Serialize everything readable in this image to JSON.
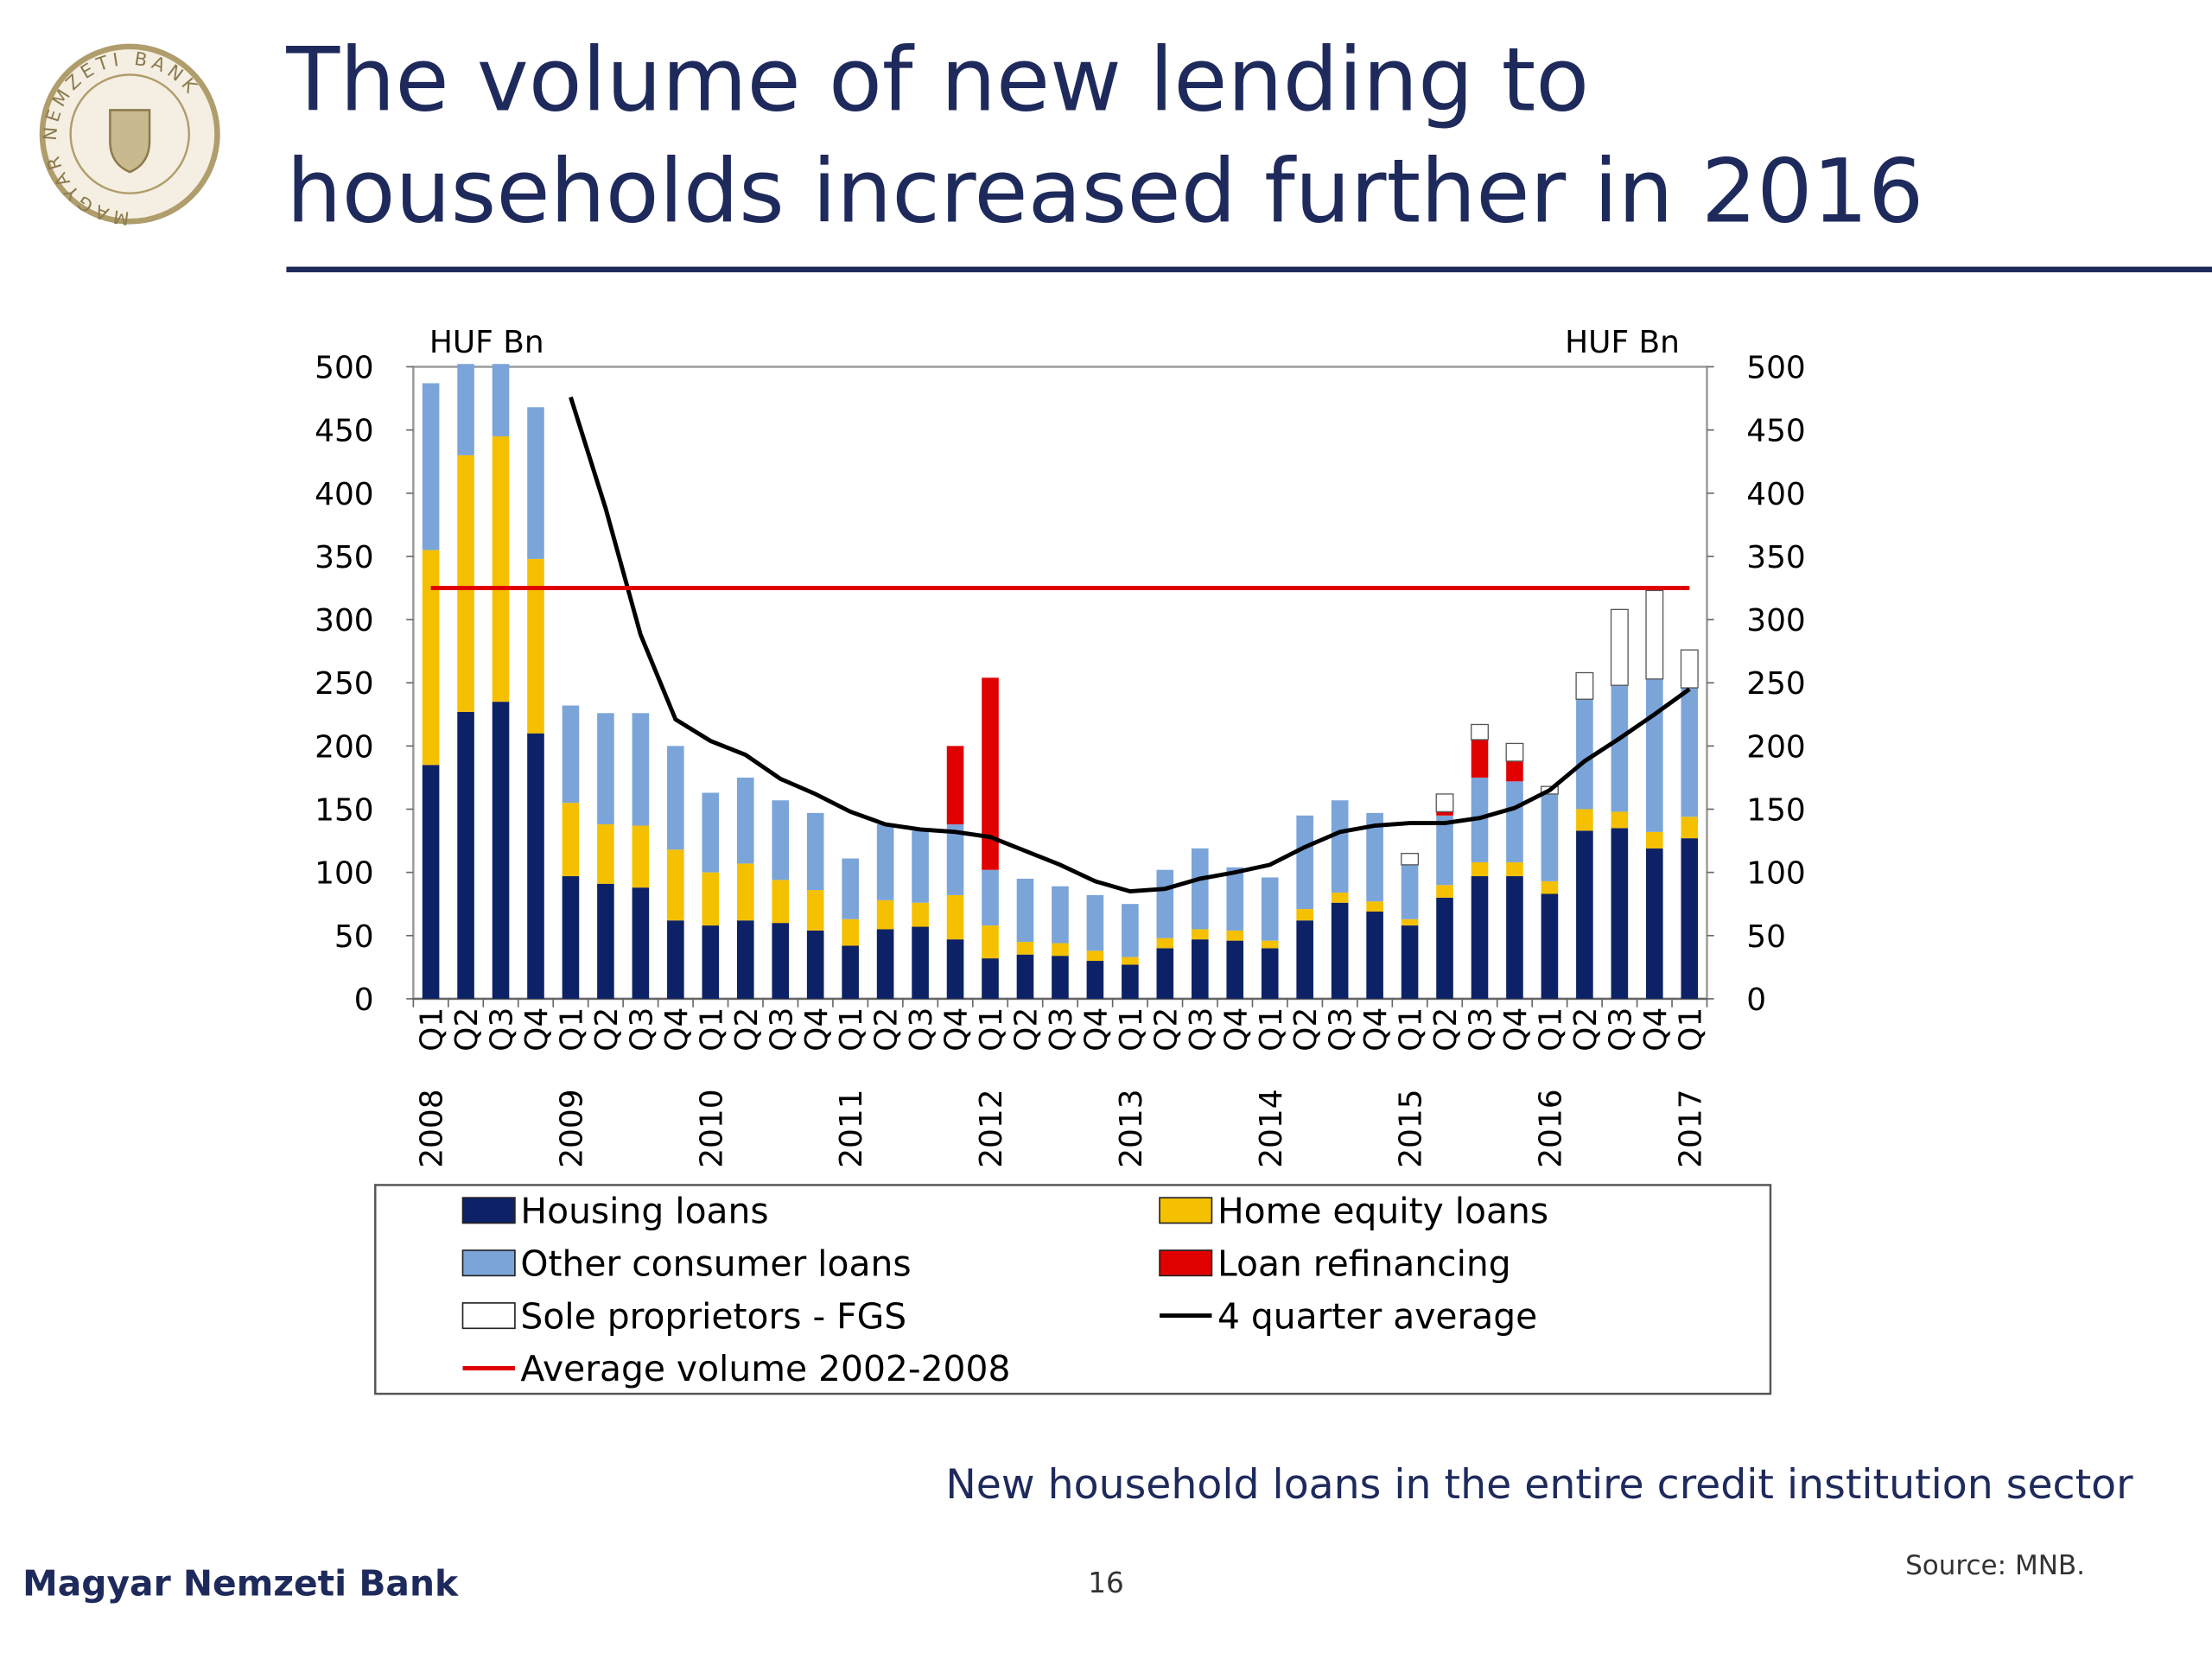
{
  "header": {
    "title": [
      "The volume of new lending to",
      "households increased further in 2016"
    ],
    "logo_text": "MAGYAR NEMZETI BANK"
  },
  "chart_data": {
    "type": "bar",
    "stacked": true,
    "y_unit_label": "HUF Bn",
    "y2_unit_label": "HUF Bn",
    "categories": [
      "Q1",
      "Q2",
      "Q3",
      "Q4",
      "Q1",
      "Q2",
      "Q3",
      "Q4",
      "Q1",
      "Q2",
      "Q3",
      "Q4",
      "Q1",
      "Q2",
      "Q3",
      "Q4",
      "Q1",
      "Q2",
      "Q3",
      "Q4",
      "Q1",
      "Q2",
      "Q3",
      "Q4",
      "Q1",
      "Q2",
      "Q3",
      "Q4",
      "Q1",
      "Q2",
      "Q3",
      "Q4",
      "Q1",
      "Q2",
      "Q3",
      "Q4",
      "Q1"
    ],
    "category_groups": [
      "2008",
      "2009",
      "2010",
      "2011",
      "2012",
      "2013",
      "2014",
      "2015",
      "2016",
      "2017"
    ],
    "series": [
      {
        "name": "Housing loans",
        "type": "bar",
        "color": "#0d2266",
        "values": [
          185,
          227,
          235,
          210,
          97,
          91,
          88,
          62,
          58,
          62,
          60,
          54,
          42,
          55,
          57,
          47,
          32,
          35,
          34,
          30,
          27,
          40,
          47,
          46,
          40,
          62,
          76,
          69,
          58,
          80,
          97,
          97,
          83,
          133,
          135,
          119,
          127
        ]
      },
      {
        "name": "Home equity loans",
        "type": "bar",
        "color": "#f5c000",
        "values": [
          170,
          203,
          210,
          138,
          58,
          47,
          49,
          56,
          42,
          45,
          34,
          32,
          21,
          23,
          19,
          35,
          26,
          10,
          10,
          8,
          6,
          8,
          8,
          8,
          6,
          9,
          8,
          8,
          5,
          10,
          11,
          11,
          10,
          17,
          13,
          13,
          17
        ]
      },
      {
        "name": "Other consumer loans",
        "type": "bar",
        "color": "#7ba4d9",
        "values": [
          132,
          95,
          80,
          120,
          77,
          88,
          89,
          82,
          63,
          68,
          63,
          61,
          48,
          60,
          57,
          56,
          44,
          50,
          45,
          44,
          42,
          54,
          64,
          50,
          50,
          74,
          73,
          70,
          43,
          55,
          67,
          64,
          69,
          87,
          100,
          121,
          102
        ]
      },
      {
        "name": "Loan refinancing",
        "type": "bar",
        "color": "#e00000",
        "values": [
          0,
          0,
          0,
          0,
          0,
          0,
          0,
          0,
          0,
          0,
          0,
          0,
          0,
          0,
          0,
          62,
          152,
          0,
          0,
          0,
          0,
          0,
          0,
          0,
          0,
          0,
          0,
          0,
          0,
          3,
          30,
          16,
          0,
          0,
          0,
          0,
          0
        ]
      },
      {
        "name": "Sole proprietors - FGS",
        "type": "bar",
        "color": "#ffffff",
        "values": [
          0,
          0,
          0,
          0,
          0,
          0,
          0,
          0,
          0,
          0,
          0,
          0,
          0,
          0,
          0,
          0,
          0,
          0,
          0,
          0,
          0,
          0,
          0,
          0,
          0,
          0,
          0,
          0,
          9,
          14,
          12,
          14,
          6,
          21,
          60,
          70,
          30
        ]
      },
      {
        "name": "4 quarter average",
        "type": "line",
        "color": "#000000",
        "values": [
          null,
          null,
          null,
          null,
          476,
          388,
          288,
          221,
          204,
          193,
          174,
          162,
          148,
          138,
          134,
          132,
          128,
          117,
          106,
          93,
          85,
          87,
          95,
          100,
          106,
          120,
          132,
          137,
          139,
          139,
          143,
          151,
          165,
          188,
          206,
          225,
          245
        ]
      },
      {
        "name": "Average volume 2002-2008",
        "type": "line",
        "color": "#e00000",
        "values": [
          325,
          325,
          325,
          325,
          325,
          325,
          325,
          325,
          325,
          325,
          325,
          325,
          325,
          325,
          325,
          325,
          325,
          325,
          325,
          325,
          325,
          325,
          325,
          325,
          325,
          325,
          325,
          325,
          325,
          325,
          325,
          325,
          325,
          325,
          325,
          325,
          325
        ]
      }
    ],
    "ylim": [
      0,
      500
    ],
    "yticks": [
      0,
      50,
      100,
      150,
      200,
      250,
      300,
      350,
      400,
      450,
      500
    ],
    "y2lim": [
      0,
      500
    ],
    "y2ticks": [
      0,
      50,
      100,
      150,
      200,
      250,
      300,
      350,
      400,
      450,
      500
    ],
    "caption": "New household loans in the entire credit institution sector",
    "source": "Source: MNB."
  },
  "footer": {
    "organization": "Magyar Nemzeti Bank",
    "page": "16"
  }
}
